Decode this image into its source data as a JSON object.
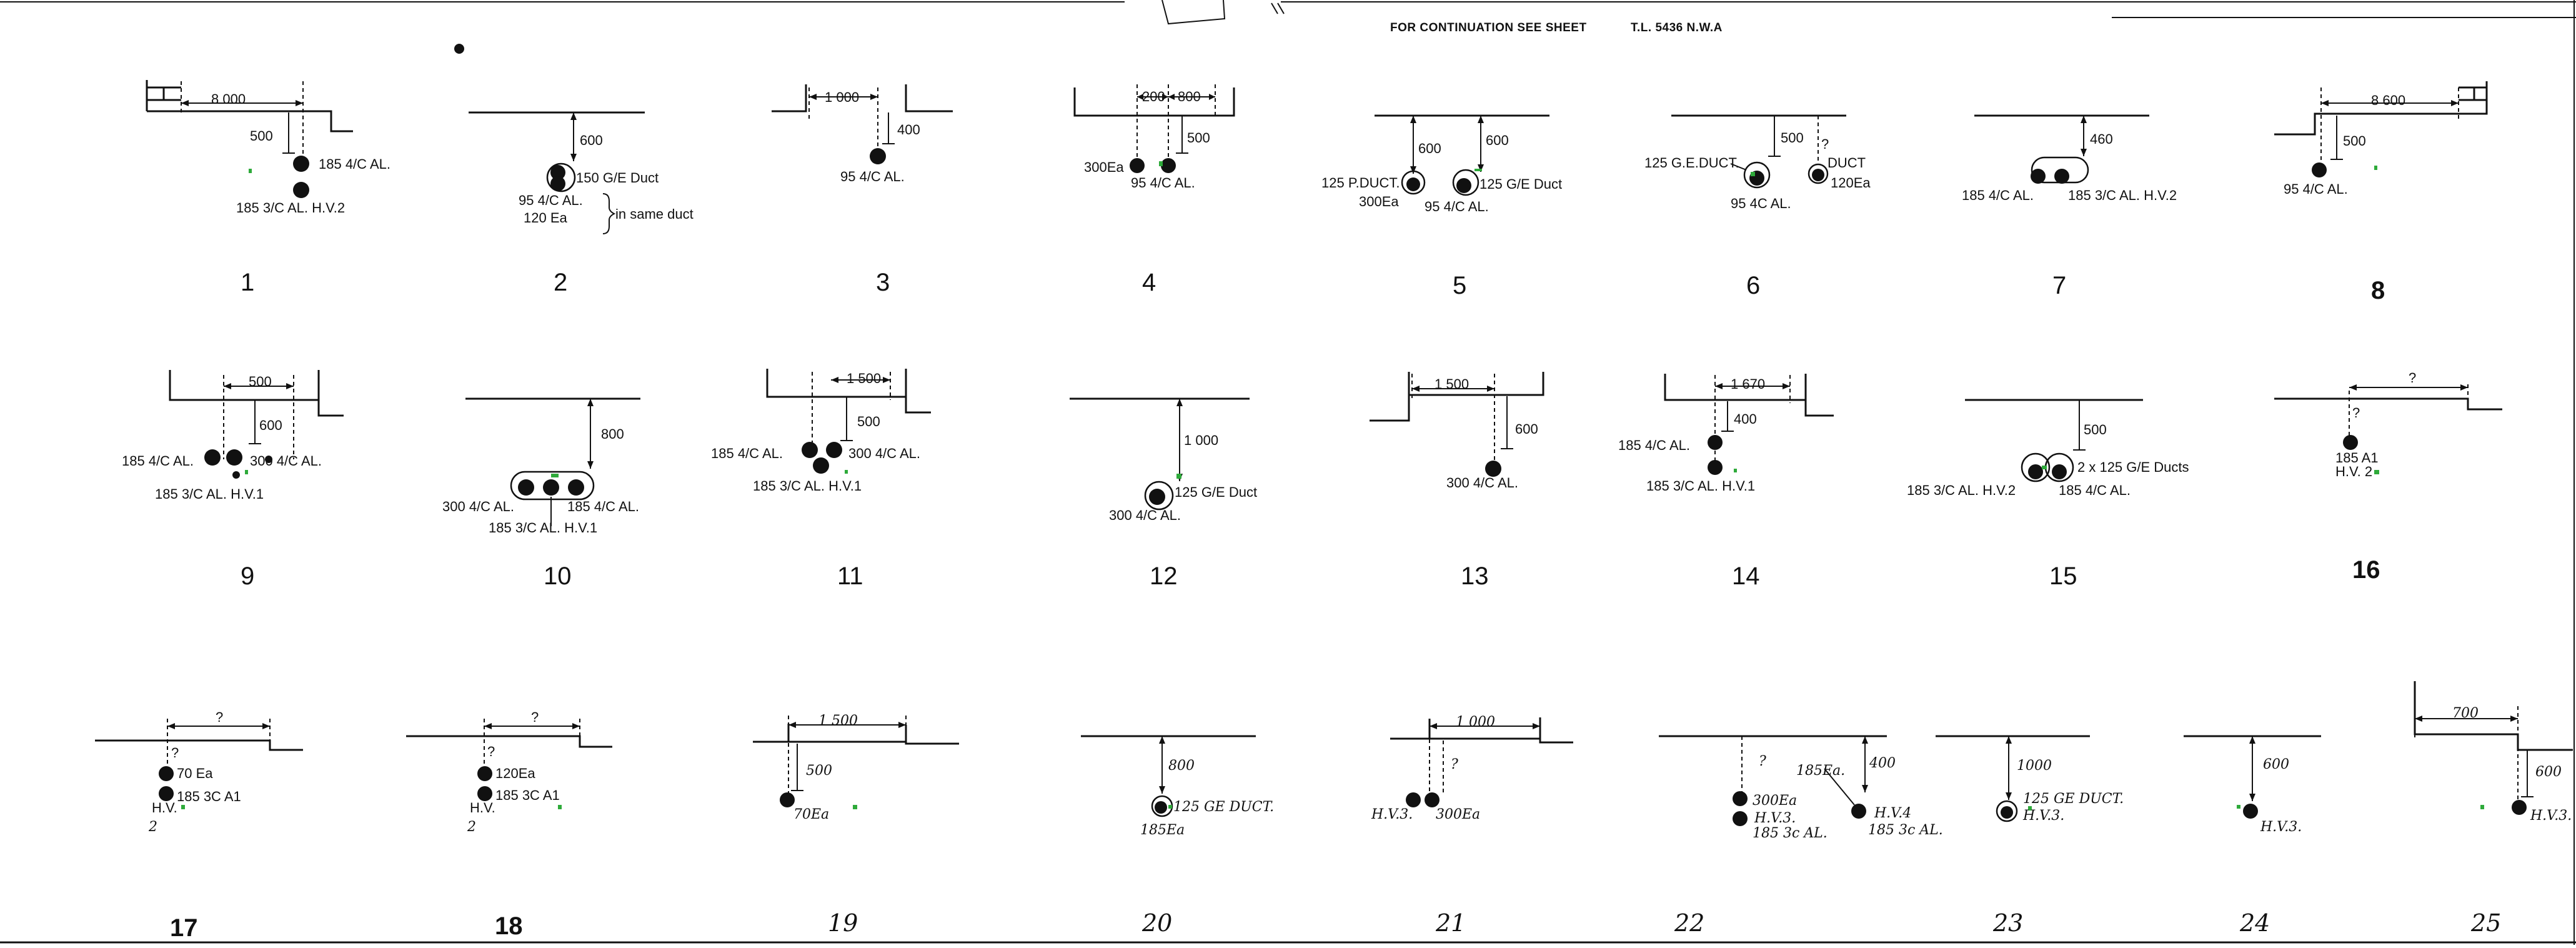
{
  "header": {
    "note": "FOR CONTINUATION SEE SHEET",
    "sheet_ref": "T.L. 5436 N.W.A"
  },
  "sections": {
    "s1": {
      "number": "1",
      "dim_h": "8 000",
      "dim_v": "500",
      "labels": [
        "185 4/C AL.",
        "185 3/C AL. H.V.2"
      ]
    },
    "s2": {
      "number": "2",
      "dim_v": "600",
      "labels": [
        "150 G/E Duct",
        "95 4/C AL.",
        "120 Ea",
        "in same duct"
      ]
    },
    "s3": {
      "number": "3",
      "dim_h": "1 000",
      "dim_v": "400",
      "labels": [
        "95 4/C AL."
      ]
    },
    "s4": {
      "number": "4",
      "dim_h1": "200",
      "dim_h2": "800",
      "dim_v": "500",
      "labels": [
        "300Ea",
        "95 4/C AL."
      ]
    },
    "s5": {
      "number": "5",
      "dim_v1": "600",
      "dim_v2": "600",
      "labels": [
        "125 P.DUCT.",
        "300Ea",
        "95 4/C AL.",
        "125 G/E Duct"
      ]
    },
    "s6": {
      "number": "6",
      "dim_v": "500",
      "dim_q": "?",
      "labels": [
        "125 G.E.DUCT.",
        "DUCT",
        "120Ea",
        "95 4C AL."
      ]
    },
    "s7": {
      "number": "7",
      "dim_v": "460",
      "labels": [
        "185 4/C AL.",
        "185 3/C AL. H.V.2"
      ]
    },
    "s8": {
      "number": "8",
      "dim_h": "8 600",
      "dim_v": "500",
      "labels": [
        "95 4/C AL."
      ]
    },
    "s9": {
      "number": "9",
      "dim_h": "500",
      "dim_v": "600",
      "labels": [
        "185 4/C AL.",
        "300 4/C AL.",
        "185 3/C AL. H.V.1"
      ]
    },
    "s10": {
      "number": "10",
      "dim_v": "800",
      "labels": [
        "300 4/C AL.",
        "185 4/C AL.",
        "185 3/C AL. H.V.1"
      ]
    },
    "s11": {
      "number": "11",
      "dim_h": "1 500",
      "dim_v": "500",
      "labels": [
        "185 4/C AL.",
        "300 4/C AL.",
        "185 3/C AL. H.V.1"
      ]
    },
    "s12": {
      "number": "12",
      "dim_v": "1 000",
      "labels": [
        "125 G/E Duct",
        "300 4/C AL."
      ]
    },
    "s13": {
      "number": "13",
      "dim_h": "1 500",
      "dim_v": "600",
      "labels": [
        "300 4/C AL."
      ]
    },
    "s14": {
      "number": "14",
      "dim_h": "1 670",
      "dim_v": "400",
      "labels": [
        "185 4/C AL.",
        "185 3/C AL. H.V.1"
      ]
    },
    "s15": {
      "number": "15",
      "dim_v": "500",
      "labels": [
        "2 x 125 G/E Ducts",
        "185 3/C AL. H.V.2",
        "185 4/C AL."
      ]
    },
    "s16": {
      "number": "16",
      "dim_h": "?",
      "dim_v": "?",
      "labels": [
        "185 A1",
        "H.V. 2"
      ]
    },
    "s17": {
      "number": "17",
      "dim_h": "?",
      "dim_v": "?",
      "labels": [
        "70 Ea",
        "185 3C A1",
        "H.V.",
        "2"
      ]
    },
    "s18": {
      "number": "18",
      "dim_h": "?",
      "dim_v": "?",
      "labels": [
        "120Ea",
        "185 3C A1",
        "H.V.",
        "2"
      ]
    },
    "s19": {
      "number": "19",
      "dim_h": "1 500",
      "dim_v": "500",
      "labels": [
        "70Ea"
      ]
    },
    "s20": {
      "number": "20",
      "dim_v": "800",
      "labels": [
        "125 GE DUCT.",
        "185Ea"
      ]
    },
    "s21": {
      "number": "21",
      "dim_h": "1 000",
      "dim_v": "?",
      "labels": [
        "H.V.3.",
        "300Ea"
      ]
    },
    "s22": {
      "number": "22",
      "dim_v1": "?",
      "dim_v2": "400",
      "labels": [
        "185Ea.",
        "300Ea",
        "H.V.3.",
        "185 3c AL.",
        "H.V.4",
        "185 3c AL."
      ]
    },
    "s23": {
      "number": "23",
      "dim_v": "1000",
      "labels": [
        "125 GE DUCT.",
        "H.V.3."
      ]
    },
    "s24": {
      "number": "24",
      "dim_v": "600",
      "labels": [
        "H.V.3."
      ]
    },
    "s25": {
      "number": "25",
      "dim_h": "700",
      "dim_v": "600",
      "labels": [
        "H.V.3."
      ]
    }
  }
}
